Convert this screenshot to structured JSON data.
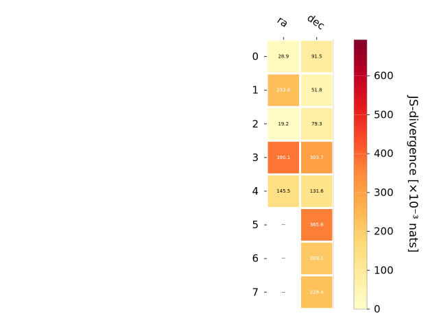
{
  "chart_data": {
    "type": "heatmap",
    "x_categories": [
      "ra",
      "dec"
    ],
    "y_categories": [
      "0",
      "1",
      "2",
      "3",
      "4",
      "5",
      "6",
      "7"
    ],
    "values": [
      [
        28.9,
        91.5
      ],
      [
        233.8,
        51.8
      ],
      [
        19.2,
        79.3
      ],
      [
        380.1,
        303.7
      ],
      [
        145.5,
        131.6
      ],
      [
        null,
        365.6
      ],
      [
        null,
        209.1
      ],
      [
        null,
        228.4
      ]
    ],
    "cell_labels": [
      [
        "28.9",
        "91.5"
      ],
      [
        "233.8",
        "51.8"
      ],
      [
        "19.2",
        "79.3"
      ],
      [
        "380.1",
        "303.7"
      ],
      [
        "145.5",
        "131.6"
      ],
      [
        "--",
        "365.6"
      ],
      [
        "--",
        "209.1"
      ],
      [
        "--",
        "228.4"
      ]
    ],
    "missing_label": "--",
    "colorbar": {
      "label": "JS-divergence [×10⁻³ nats]",
      "range": [
        0,
        693
      ],
      "ticks": [
        "0",
        "100",
        "200",
        "300",
        "400",
        "500",
        "600"
      ],
      "tick_values": [
        0,
        100,
        200,
        300,
        400,
        500,
        600
      ],
      "colormap": "YlOrRd"
    }
  }
}
